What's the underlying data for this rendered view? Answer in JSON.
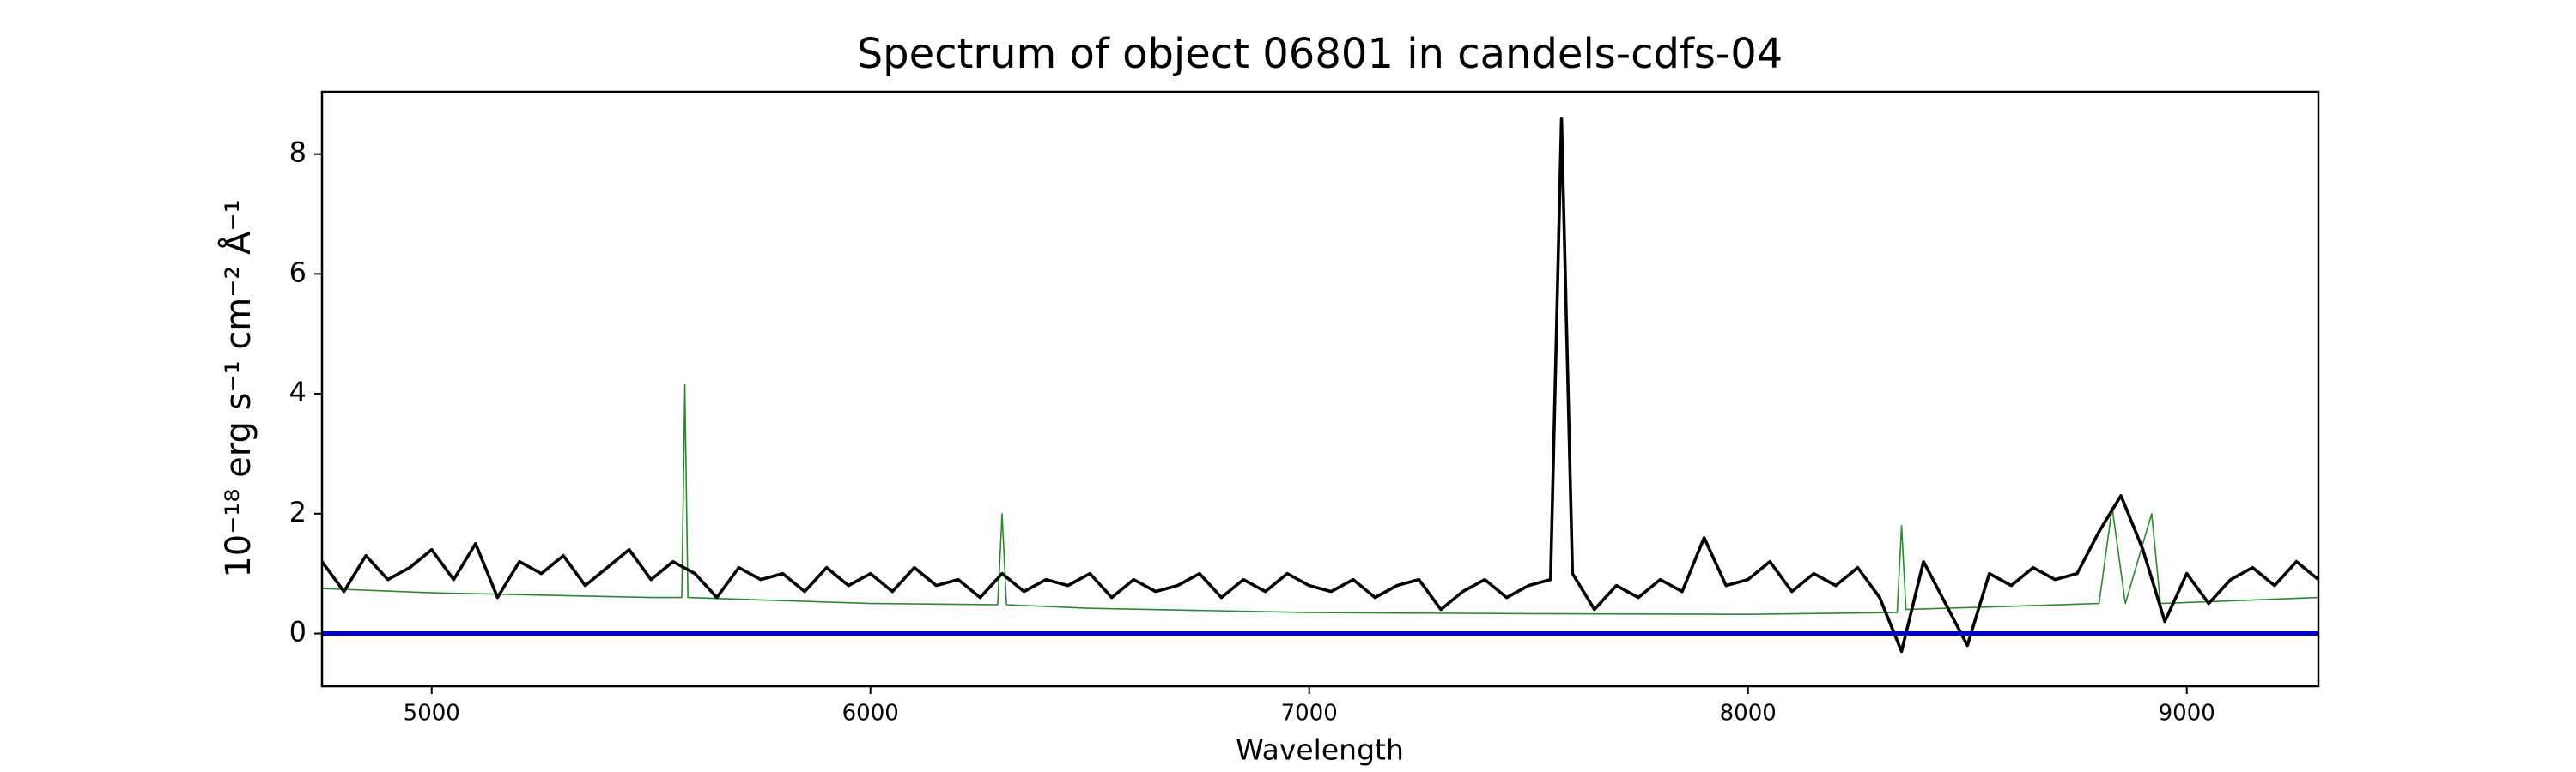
{
  "chart_data": {
    "type": "line",
    "title": "Spectrum of object 06801 in candels-cdfs-04",
    "x_label": "Wavelength",
    "y_label": "10⁻¹⁸ erg s⁻¹ cm⁻² Å⁻¹",
    "xlim": [
      4750,
      9300
    ],
    "ylim": [
      -0.88,
      9.04
    ],
    "xticks": [
      5000,
      6000,
      7000,
      8000,
      9000
    ],
    "yticks": [
      0,
      2,
      4,
      6,
      8
    ],
    "series": [
      {
        "color": "#2a8a2a",
        "x": [
          4750,
          5000,
          5500,
          5570,
          5577,
          5584,
          6000,
          6290,
          6300,
          6310,
          6500,
          7000,
          7500,
          8000,
          8340,
          8350,
          8360,
          8800,
          8830,
          8860,
          8920,
          8940,
          9300
        ],
        "values": [
          0.75,
          0.68,
          0.6,
          0.6,
          4.15,
          0.6,
          0.5,
          0.48,
          2.0,
          0.48,
          0.42,
          0.35,
          0.33,
          0.32,
          0.35,
          1.8,
          0.4,
          0.5,
          2.1,
          0.5,
          2.0,
          0.5,
          0.6
        ]
      },
      {
        "color": "#000000",
        "x": [
          4750,
          4800,
          4850,
          4900,
          4950,
          5000,
          5050,
          5100,
          5150,
          5200,
          5250,
          5300,
          5350,
          5400,
          5450,
          5500,
          5550,
          5600,
          5650,
          5700,
          5750,
          5800,
          5850,
          5900,
          5950,
          6000,
          6050,
          6100,
          6150,
          6200,
          6250,
          6300,
          6350,
          6400,
          6450,
          6500,
          6550,
          6600,
          6650,
          6700,
          6750,
          6800,
          6850,
          6900,
          6950,
          7000,
          7050,
          7100,
          7150,
          7200,
          7250,
          7300,
          7350,
          7400,
          7450,
          7500,
          7550,
          7575,
          7600,
          7650,
          7700,
          7750,
          7800,
          7850,
          7900,
          7950,
          8000,
          8050,
          8100,
          8150,
          8200,
          8250,
          8300,
          8350,
          8400,
          8450,
          8500,
          8550,
          8600,
          8650,
          8700,
          8750,
          8800,
          8850,
          8900,
          8950,
          9000,
          9050,
          9100,
          9150,
          9200,
          9250,
          9300
        ],
        "values": [
          1.2,
          0.7,
          1.3,
          0.9,
          1.1,
          1.4,
          0.9,
          1.5,
          0.6,
          1.2,
          1.0,
          1.3,
          0.8,
          1.1,
          1.4,
          0.9,
          1.2,
          1.0,
          0.6,
          1.1,
          0.9,
          1.0,
          0.7,
          1.1,
          0.8,
          1.0,
          0.7,
          1.1,
          0.8,
          0.9,
          0.6,
          1.0,
          0.7,
          0.9,
          0.8,
          1.0,
          0.6,
          0.9,
          0.7,
          0.8,
          1.0,
          0.6,
          0.9,
          0.7,
          1.0,
          0.8,
          0.7,
          0.9,
          0.6,
          0.8,
          0.9,
          0.4,
          0.7,
          0.9,
          0.6,
          0.8,
          0.9,
          8.6,
          1.0,
          0.4,
          0.8,
          0.6,
          0.9,
          0.7,
          1.6,
          0.8,
          0.9,
          1.2,
          0.7,
          1.0,
          0.8,
          1.1,
          0.6,
          -0.3,
          1.2,
          0.5,
          -0.2,
          1.0,
          0.8,
          1.1,
          0.9,
          1.0,
          1.7,
          2.3,
          1.4,
          0.2,
          1.0,
          0.5,
          0.9,
          1.1,
          0.8,
          1.2,
          0.9
        ]
      },
      {
        "color": "#0000cc",
        "x": [
          4750,
          9300
        ],
        "values": [
          0,
          0
        ]
      }
    ]
  }
}
